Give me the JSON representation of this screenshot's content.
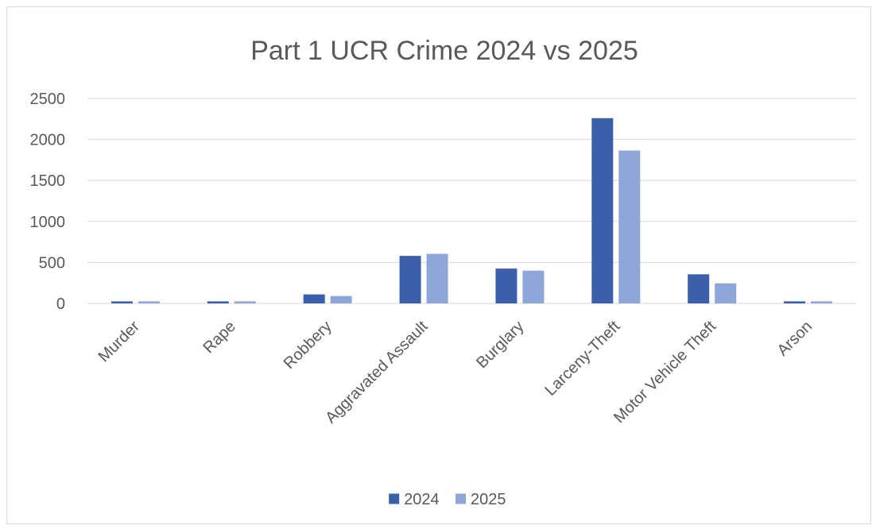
{
  "chart_data": {
    "type": "bar",
    "title": "Part 1 UCR Crime 2024 vs 2025",
    "xlabel": "",
    "ylabel": "",
    "ylim": [
      0,
      2500
    ],
    "yticks": [
      0,
      500,
      1000,
      1500,
      2000,
      2500
    ],
    "grid": true,
    "legend_position": "bottom",
    "categories": [
      "Murder",
      "Rape",
      "Robbery",
      "Aggravated Assault",
      "Burglary",
      "Larceny-Theft",
      "Motor Vehicle Theft",
      "Arson"
    ],
    "series": [
      {
        "name": "2024",
        "color": "#3a5fab",
        "values": [
          25,
          25,
          110,
          580,
          425,
          2260,
          355,
          25
        ]
      },
      {
        "name": "2025",
        "color": "#8ea6d8",
        "values": [
          25,
          25,
          90,
          605,
          400,
          1865,
          245,
          25
        ]
      }
    ]
  }
}
